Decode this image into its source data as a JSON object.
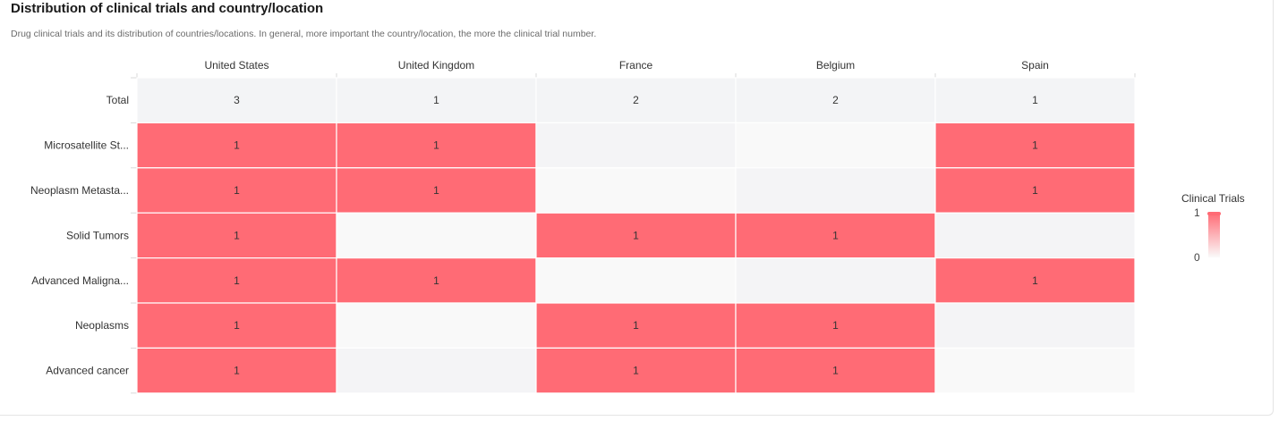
{
  "header": {
    "title": "Distribution of clinical trials and country/location",
    "subtitle": "Drug clinical trials and its distribution of countries/locations. In general, more important the country/location, the more the clinical trial number."
  },
  "legend": {
    "title": "Clinical Trials",
    "max_label": "1",
    "min_label": "0"
  },
  "colors": {
    "high": "#ff6b75",
    "total_cell": "#f3f4f6",
    "empty_a": "#f4f4f6",
    "empty_b": "#f9f9f9",
    "grid_line": "#ffffff",
    "text": "#333333"
  },
  "chart_data": {
    "type": "heatmap",
    "columns": [
      "United States",
      "United Kingdom",
      "France",
      "Belgium",
      "Spain"
    ],
    "rows": [
      "Total",
      "Microsatellite St...",
      "Neoplasm Metasta...",
      "Solid Tumors",
      "Advanced Maligna...",
      "Neoplasms",
      "Advanced cancer"
    ],
    "values": [
      [
        3,
        1,
        2,
        2,
        1
      ],
      [
        1,
        1,
        null,
        null,
        1
      ],
      [
        1,
        1,
        null,
        null,
        1
      ],
      [
        1,
        null,
        1,
        1,
        null
      ],
      [
        1,
        1,
        null,
        null,
        1
      ],
      [
        1,
        null,
        1,
        1,
        null
      ],
      [
        1,
        null,
        1,
        1,
        null
      ]
    ],
    "scale_range": [
      0,
      1
    ],
    "legend_placement": "right"
  }
}
